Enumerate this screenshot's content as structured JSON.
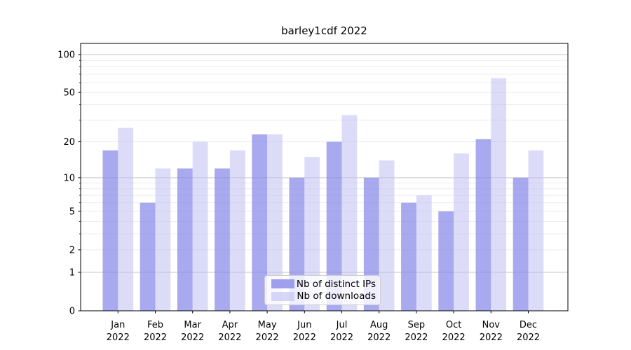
{
  "chart_data": {
    "type": "bar",
    "title": "barley1cdf 2022",
    "categories": [
      "Jan",
      "Feb",
      "Mar",
      "Apr",
      "May",
      "Jun",
      "Jul",
      "Aug",
      "Sep",
      "Oct",
      "Nov",
      "Dec"
    ],
    "category_year": "2022",
    "series": [
      {
        "name": "Nb of distinct IPs",
        "color": "#8888e9",
        "fill_opacity": 0.72,
        "values": [
          17,
          6,
          12,
          12,
          23,
          10,
          20,
          10,
          6,
          5,
          21,
          10
        ]
      },
      {
        "name": "Nb of downloads",
        "color": "#bfbff4",
        "fill_opacity": 0.55,
        "values": [
          26,
          12,
          20,
          17,
          23,
          15,
          33,
          14,
          7,
          16,
          65,
          17
        ]
      }
    ],
    "yscale": "log1p",
    "ylim": [
      0,
      100
    ],
    "yticks": [
      0,
      1,
      2,
      5,
      10,
      20,
      50,
      100
    ],
    "minor_gridlines": [
      2,
      3,
      4,
      5,
      6,
      7,
      8,
      9,
      20,
      30,
      40,
      50,
      60,
      70,
      80,
      90
    ],
    "major_gridlines": [
      1,
      10,
      100
    ],
    "grid": true,
    "legend_position": "lower center",
    "colors": {
      "major_grid": "#c6c6c6",
      "minor_grid": "#ececec",
      "spine": "#000000",
      "text": "#000000",
      "background": "#ffffff"
    }
  }
}
